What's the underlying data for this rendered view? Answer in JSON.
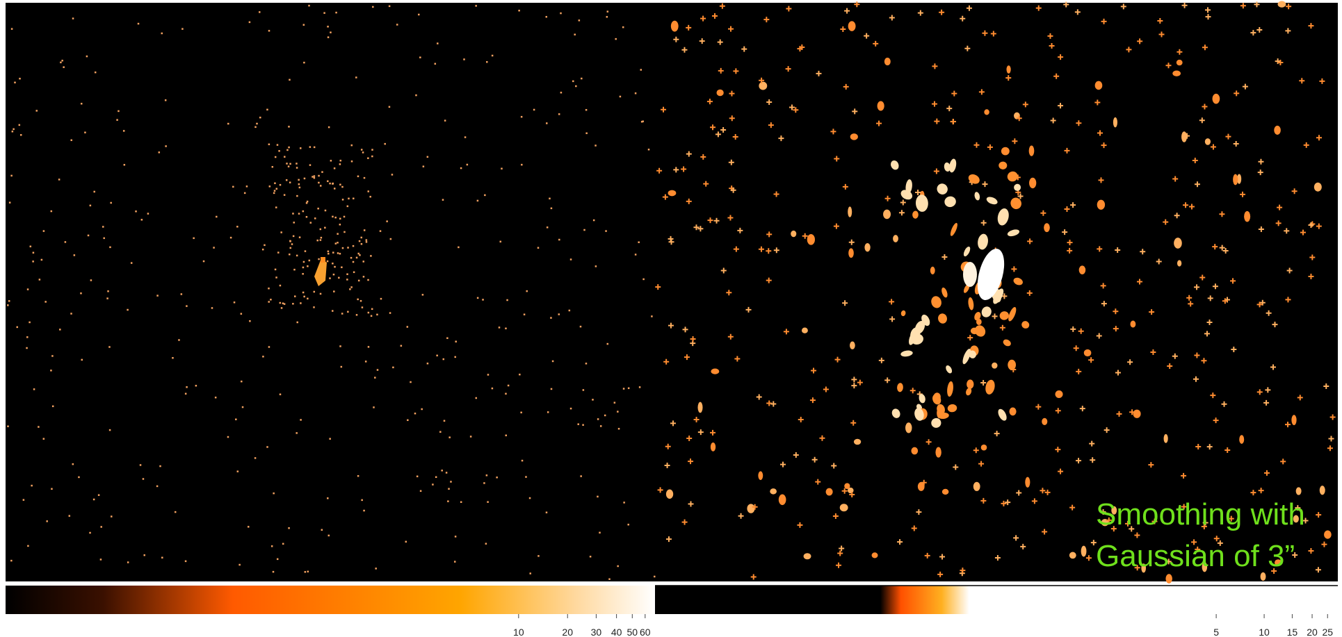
{
  "annotation": [
    "Smoothing with",
    "Gaussian of 3”"
  ],
  "colorbars": [
    {
      "scale": "log",
      "lim": [
        0.007,
        69
      ],
      "ticks": [
        10,
        20,
        30,
        40,
        50,
        60
      ]
    },
    {
      "scale": "log",
      "lim": [
        0.0015,
        29
      ],
      "ticks": [
        5,
        10,
        15,
        20,
        25
      ]
    }
  ]
}
